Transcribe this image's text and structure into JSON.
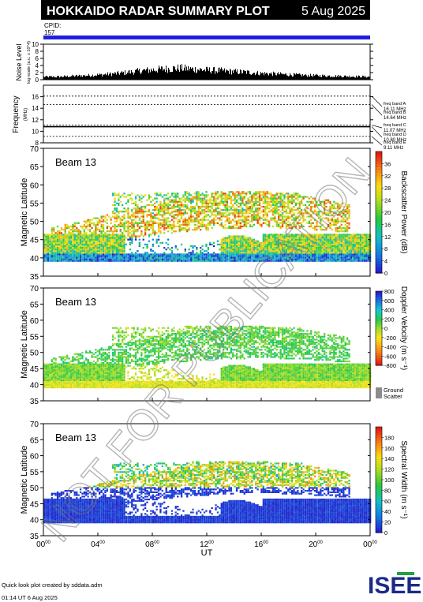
{
  "header": {
    "title": "HOKKAIDO RADAR SUMMARY PLOT",
    "date": "5 Aug 2025",
    "cpid_label": "CPID:",
    "cpid_value": "157"
  },
  "footer": {
    "credit": "Quick look plot created by sddata.adm",
    "timestamp": "01:14 UT  6 Aug 2025",
    "logo_text": "ISEE"
  },
  "watermark": "NOT FOR PUBLICATION",
  "colors": {
    "cpid_bar": "#2020e0",
    "ground_scatter": "#8c8c8c",
    "noise": "#000000"
  },
  "chart_data": [
    {
      "type": "area",
      "name": "noise",
      "ylabel": "Noise Level",
      "ylabel2": "log-scale (a.u. x 10^4)",
      "ylim": [
        0,
        10
      ],
      "yticks": [
        "0",
        "2",
        "4",
        "6",
        "8",
        "10"
      ],
      "x": [
        0,
        1,
        2,
        3,
        4,
        5,
        6,
        7,
        8,
        9,
        10,
        11,
        12,
        13,
        14,
        15,
        16,
        17,
        18,
        19,
        20,
        21,
        22,
        23,
        24
      ],
      "values": [
        0.9,
        0.9,
        1.1,
        1.3,
        1.5,
        1.8,
        2.2,
        2.7,
        3.1,
        3.4,
        3.6,
        3.3,
        3.0,
        2.8,
        2.5,
        2.3,
        2.0,
        1.8,
        1.6,
        1.4,
        1.3,
        1.2,
        1.1,
        1.0,
        0.9
      ]
    },
    {
      "type": "line",
      "name": "frequency",
      "ylabel": "Frequency",
      "yunit": "(MHz)",
      "ylim": [
        8,
        18
      ],
      "yticks": [
        "8",
        "10",
        "12",
        "14",
        "16"
      ],
      "bands": [
        {
          "label": "freq band A",
          "freq": "16.11 MHz",
          "value": 16.11
        },
        {
          "label": "freq band B",
          "freq": "14.64 MHz",
          "value": 14.64
        },
        {
          "label": "freq band C",
          "freq": "11.07 MHz",
          "value": 11.07
        },
        {
          "label": "freq band D",
          "freq": "10.80 MHz",
          "value": 10.8
        },
        {
          "label": "freq band E",
          "freq": "9.11 MHz",
          "value": 9.11
        }
      ],
      "series": [
        {
          "values": [
            10.8,
            10.8,
            10.8,
            10.8,
            10.8,
            10.8,
            10.8,
            10.8,
            10.8,
            10.8,
            10.8,
            10.8,
            10.8
          ]
        }
      ]
    },
    {
      "type": "heatmap",
      "name": "power",
      "beam": "Beam 13",
      "ylabel": "Magnetic Latitude",
      "ylim": [
        35,
        70
      ],
      "yticks": [
        "35",
        "40",
        "45",
        "50",
        "55",
        "60",
        "65",
        "70"
      ],
      "colorbar_label": "Backscatter Power (dB)",
      "colorbar_ticks": [
        "0",
        "4",
        "8",
        "12",
        "16",
        "20",
        "24",
        "28",
        "32",
        "36"
      ],
      "colorbar_range": [
        0,
        40
      ]
    },
    {
      "type": "heatmap",
      "name": "velocity",
      "beam": "Beam 13",
      "ylabel": "Magnetic Latitude",
      "ylim": [
        35,
        70
      ],
      "yticks": [
        "35",
        "40",
        "45",
        "50",
        "55",
        "60",
        "65",
        "70"
      ],
      "colorbar_label": "Doppler Velocity (m s⁻¹)",
      "colorbar_ticks": [
        "-800",
        "-600",
        "-400",
        "-200",
        "0",
        "200",
        "400",
        "600",
        "800"
      ],
      "colorbar_range": [
        -800,
        800
      ],
      "ground_scatter_label1": "Ground",
      "ground_scatter_label2": "Scatter"
    },
    {
      "type": "heatmap",
      "name": "width",
      "beam": "Beam 13",
      "ylabel": "Magnetic Latitude",
      "ylim": [
        35,
        70
      ],
      "yticks": [
        "35",
        "40",
        "45",
        "50",
        "55",
        "60",
        "65",
        "70"
      ],
      "colorbar_label": "Spectral Width (m s⁻¹)",
      "colorbar_ticks": [
        "0",
        "20",
        "40",
        "60",
        "80",
        "100",
        "120",
        "140",
        "160",
        "180"
      ],
      "colorbar_range": [
        0,
        200
      ],
      "xlabel": "UT",
      "xticks": [
        {
          "h": "00",
          "m": "00"
        },
        {
          "h": "04",
          "m": "00"
        },
        {
          "h": "08",
          "m": "00"
        },
        {
          "h": "12",
          "m": "00"
        },
        {
          "h": "16",
          "m": "00"
        },
        {
          "h": "20",
          "m": "00"
        },
        {
          "h": "00",
          "m": "00"
        }
      ]
    }
  ]
}
